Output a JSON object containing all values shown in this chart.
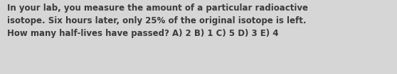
{
  "text": "In your lab, you measure the amount of a particular radioactive\nisotope. Six hours later, only 25% of the original isotope is left.\nHow many half-lives have passed? A) 2 B) 1 C) 5 D) 3 E) 4",
  "background_color": "#d6d6d6",
  "text_color": "#3a3a3a",
  "font_size": 8.5,
  "fig_width": 5.58,
  "fig_height": 1.05,
  "dpi": 100
}
